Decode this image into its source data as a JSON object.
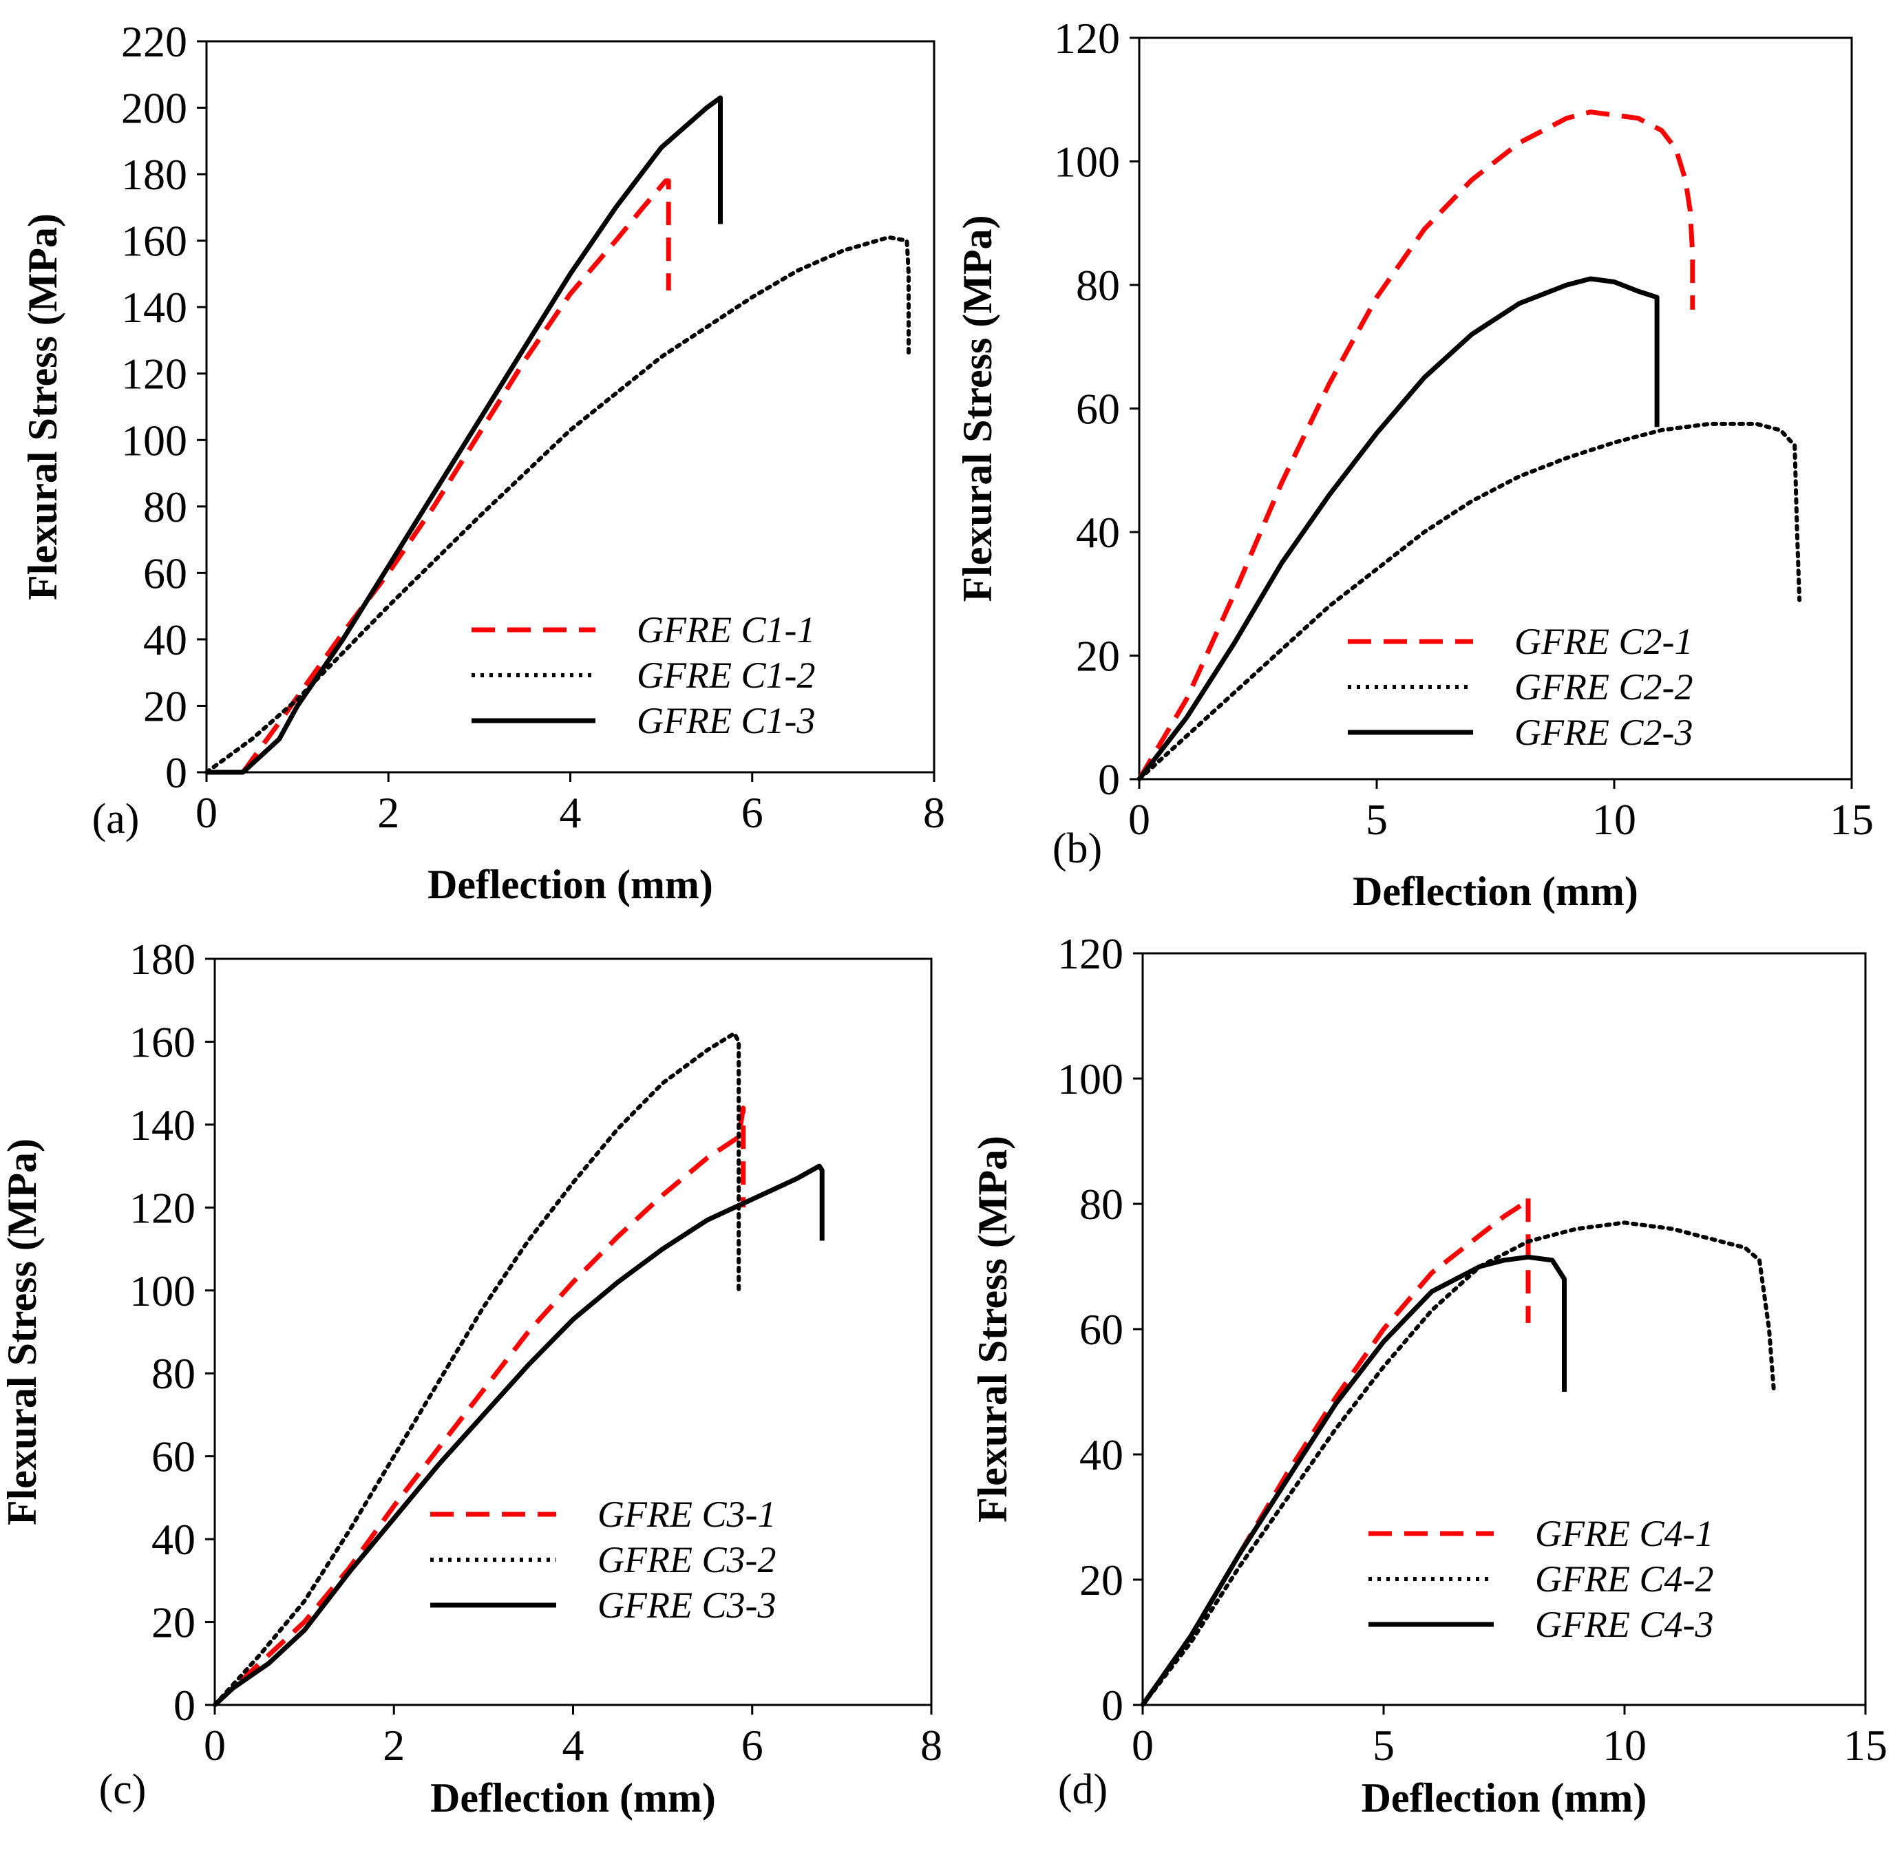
{
  "chart_data": [
    {
      "type": "line",
      "panel_label": "(a)",
      "xlabel": "Deflection (mm)",
      "ylabel": "Flexural Stress (MPa)",
      "xlim": [
        0,
        8
      ],
      "ylim": [
        0,
        220
      ],
      "xticks": [
        "0",
        "2",
        "4",
        "6",
        "8"
      ],
      "yticks": [
        "0",
        "20",
        "40",
        "60",
        "80",
        "100",
        "120",
        "140",
        "160",
        "180",
        "200",
        "220"
      ],
      "legend_position": "bottom-right",
      "series": [
        {
          "name": "GFRE C1-1",
          "color": "#ff0000",
          "style": "dashed",
          "x": [
            0.4,
            0.8,
            1.5,
            2.0,
            2.5,
            3.0,
            3.5,
            4.0,
            4.5,
            4.8,
            5.05,
            5.08,
            5.08
          ],
          "y": [
            0,
            15,
            42,
            60,
            80,
            102,
            124,
            144,
            160,
            170,
            178,
            178,
            145
          ]
        },
        {
          "name": "GFRE C1-2",
          "color": "#000000",
          "style": "dotted",
          "x": [
            0,
            0.5,
            1.0,
            2.0,
            3.0,
            4.0,
            5.0,
            6.0,
            6.5,
            7.0,
            7.5,
            7.7,
            7.72,
            7.72
          ],
          "y": [
            0,
            10,
            22,
            50,
            77,
            103,
            125,
            143,
            151,
            157,
            161,
            160,
            150,
            125
          ]
        },
        {
          "name": "GFRE C1-3",
          "color": "#000000",
          "style": "solid",
          "x": [
            0,
            0.4,
            0.6,
            0.8,
            1.0,
            1.5,
            2.0,
            2.5,
            3.0,
            3.5,
            4.0,
            4.5,
            5.0,
            5.5,
            5.65,
            5.65
          ],
          "y": [
            0,
            0,
            5,
            10,
            20,
            40,
            62,
            84,
            106,
            128,
            150,
            170,
            188,
            200,
            203,
            165
          ]
        }
      ]
    },
    {
      "type": "line",
      "panel_label": "(b)",
      "xlabel": "Deflection (mm)",
      "ylabel": "Flexural Stress (MPa)",
      "xlim": [
        0,
        15
      ],
      "ylim": [
        0,
        120
      ],
      "xticks": [
        "0",
        "5",
        "10",
        "15"
      ],
      "yticks": [
        "0",
        "20",
        "40",
        "60",
        "80",
        "100",
        "120"
      ],
      "legend_position": "bottom-right",
      "series": [
        {
          "name": "GFRE C2-1",
          "color": "#ff0000",
          "style": "dashed",
          "x": [
            0,
            1.0,
            2.0,
            3.0,
            4.0,
            5.0,
            6.0,
            7.0,
            8.0,
            9.0,
            9.5,
            10.0,
            10.5,
            11.0,
            11.3,
            11.5,
            11.6,
            11.65,
            11.65
          ],
          "y": [
            0,
            13,
            30,
            48,
            64,
            78,
            89,
            97,
            103,
            107,
            108,
            107.5,
            107,
            105,
            102,
            97,
            92,
            85,
            76
          ]
        },
        {
          "name": "GFRE C2-2",
          "color": "#000000",
          "style": "dotted",
          "x": [
            0,
            1.0,
            2.0,
            3.0,
            4.0,
            5.0,
            6.0,
            7.0,
            8.0,
            9.0,
            10.0,
            11.0,
            12.0,
            13.0,
            13.5,
            13.8,
            13.85,
            13.9
          ],
          "y": [
            0,
            7,
            14,
            21,
            28,
            34,
            40,
            45,
            49,
            52,
            54.5,
            56.5,
            57.5,
            57.5,
            56.5,
            54,
            40,
            29
          ]
        },
        {
          "name": "GFRE C2-3",
          "color": "#000000",
          "style": "solid",
          "x": [
            0,
            1.0,
            2.0,
            3.0,
            4.0,
            5.0,
            6.0,
            7.0,
            8.0,
            9.0,
            9.5,
            10.0,
            10.5,
            10.9,
            10.9
          ],
          "y": [
            0,
            10,
            22,
            35,
            46,
            56,
            65,
            72,
            77,
            80,
            81,
            80.5,
            79,
            78,
            57
          ]
        }
      ]
    },
    {
      "type": "line",
      "panel_label": "(c)",
      "xlabel": "Deflection (mm)",
      "ylabel": "Flexural Stress (MPa)",
      "xlim": [
        0,
        8
      ],
      "ylim": [
        0,
        180
      ],
      "xticks": [
        "0",
        "2",
        "4",
        "6",
        "8"
      ],
      "yticks": [
        "0",
        "20",
        "40",
        "60",
        "80",
        "100",
        "120",
        "140",
        "160",
        "180"
      ],
      "legend_position": "bottom-right",
      "series": [
        {
          "name": "GFRE C3-1",
          "color": "#ff0000",
          "style": "dashed",
          "x": [
            0,
            0.5,
            1.0,
            1.5,
            2.0,
            2.5,
            3.0,
            3.5,
            4.0,
            4.5,
            5.0,
            5.5,
            5.85,
            5.9,
            5.9
          ],
          "y": [
            0,
            10,
            20,
            33,
            48,
            62,
            76,
            90,
            102,
            113,
            123,
            132,
            137,
            144,
            120
          ]
        },
        {
          "name": "GFRE C3-2",
          "color": "#000000",
          "style": "dotted",
          "x": [
            0,
            0.5,
            1.0,
            1.5,
            2.0,
            2.5,
            3.0,
            3.5,
            4.0,
            4.5,
            5.0,
            5.5,
            5.8,
            5.85,
            5.85
          ],
          "y": [
            0,
            12,
            25,
            42,
            60,
            78,
            96,
            112,
            126,
            139,
            150,
            158,
            162,
            160,
            100
          ]
        },
        {
          "name": "GFRE C3-3",
          "color": "#000000",
          "style": "solid",
          "x": [
            0,
            0.2,
            0.6,
            1.0,
            1.5,
            2.0,
            2.5,
            3.0,
            3.5,
            4.0,
            4.5,
            5.0,
            5.5,
            6.0,
            6.5,
            6.75,
            6.78,
            6.78
          ],
          "y": [
            0,
            4,
            10,
            18,
            32,
            45,
            58,
            70,
            82,
            93,
            102,
            110,
            117,
            122,
            127,
            130,
            129,
            112
          ]
        }
      ]
    },
    {
      "type": "line",
      "panel_label": "(d)",
      "xlabel": "Deflection (mm)",
      "ylabel": "Flexural Stress (MPa)",
      "xlim": [
        0,
        15
      ],
      "ylim": [
        0,
        120
      ],
      "xticks": [
        "0",
        "5",
        "10",
        "15"
      ],
      "yticks": [
        "0",
        "20",
        "40",
        "60",
        "80",
        "100",
        "120"
      ],
      "legend_position": "bottom-right",
      "series": [
        {
          "name": "GFRE C4-1",
          "color": "#ff0000",
          "style": "dashed",
          "x": [
            0,
            1.0,
            2.0,
            3.0,
            4.0,
            5.0,
            6.0,
            7.0,
            7.5,
            7.9,
            8.0,
            8.0
          ],
          "y": [
            0,
            11,
            24,
            37,
            49,
            60,
            69,
            75,
            78,
            80,
            81,
            61
          ]
        },
        {
          "name": "GFRE C4-2",
          "color": "#000000",
          "style": "dotted",
          "x": [
            0,
            1.0,
            2.0,
            3.0,
            4.0,
            5.0,
            6.0,
            7.0,
            8.0,
            9.0,
            10.0,
            11.0,
            12.0,
            12.5,
            12.8,
            13.0,
            13.1
          ],
          "y": [
            0,
            10,
            22,
            33,
            44,
            54,
            63,
            70,
            74,
            76,
            77,
            76,
            74,
            73,
            71,
            60,
            50
          ]
        },
        {
          "name": "GFRE C4-3",
          "color": "#000000",
          "style": "solid",
          "x": [
            0,
            1.0,
            2.0,
            3.0,
            4.0,
            5.0,
            6.0,
            7.0,
            7.5,
            8.0,
            8.5,
            8.75,
            8.75
          ],
          "y": [
            0,
            11,
            24,
            36,
            48,
            58,
            66,
            70,
            71,
            71.5,
            71,
            68,
            50
          ]
        }
      ]
    }
  ]
}
